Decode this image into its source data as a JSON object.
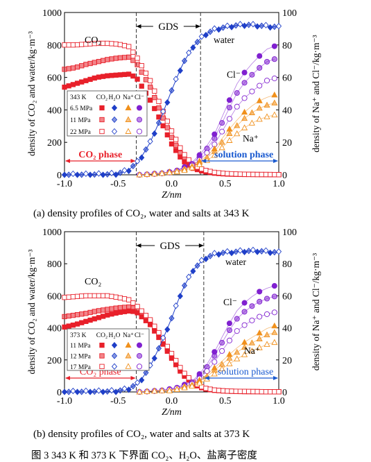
{
  "figure_caption": "图 3   343 K 和 373 K 下界面 CO₂、H₂O、盐离子密度",
  "subcaption_a": "(a)   density profiles of CO₂, water and salts at 343 K",
  "subcaption_b": "(b)   density profiles of CO₂, water and salts at 373 K",
  "colors": {
    "co2": "#e8202a",
    "water": "#1f3fc8",
    "na": "#f0901c",
    "cl": "#8020d0",
    "co2_phase": "#e8202a",
    "solution_phase": "#1a5ad0"
  },
  "chart_data": [
    {
      "type": "scatter",
      "panel": "(a)",
      "xlabel": "Z/nm",
      "ylabel_left": "density of CO₂ and water/kg·m⁻³",
      "ylabel_right": "density of Na⁺ and Cl⁻/kg·m⁻³",
      "xlim": [
        -1.0,
        1.0
      ],
      "ylim_left": [
        0,
        1000
      ],
      "ylim_right": [
        0,
        100
      ],
      "xticks": [
        "-1.0",
        "-0.5",
        "0.0",
        "0.5",
        "1.0"
      ],
      "yticks_left": [
        "0",
        "200",
        "400",
        "600",
        "800",
        "1000"
      ],
      "yticks_right": [
        "0",
        "20",
        "40",
        "60",
        "80",
        "100"
      ],
      "gds_label": "GDS",
      "gds_bounds": [
        -0.33,
        0.27
      ],
      "region_labels": {
        "left": "CO₂ phase",
        "right": "solution phase"
      },
      "annotations": {
        "co2": "CO₂",
        "water": "water",
        "cl": "Cl⁻",
        "na": "Na⁺"
      },
      "legend": {
        "header": [
          "343 K",
          "CO₂",
          "H₂O",
          "Na⁺",
          "Cl⁻"
        ],
        "rows": [
          {
            "label": "6.5 MPa",
            "style": "filled"
          },
          {
            "label": "11 MPa",
            "style": "half"
          },
          {
            "label": "22 MPa",
            "style": "open"
          }
        ]
      },
      "series": [
        {
          "name": "CO₂",
          "conditions": "6.5 MPa",
          "axis": "left",
          "x": [
            -1.0,
            -0.9,
            -0.8,
            -0.7,
            -0.6,
            -0.5,
            -0.4,
            -0.33,
            -0.2,
            -0.1,
            0.0,
            0.1,
            0.2,
            0.3,
            0.4,
            0.5,
            0.6,
            0.7,
            0.8,
            0.9,
            1.0
          ],
          "y": [
            540,
            560,
            580,
            600,
            610,
            615,
            620,
            600,
            460,
            330,
            190,
            90,
            40,
            20,
            10,
            5,
            3,
            2,
            2,
            1,
            1
          ]
        },
        {
          "name": "CO₂",
          "conditions": "11 MPa",
          "axis": "left",
          "x": [
            -1.0,
            -0.9,
            -0.8,
            -0.7,
            -0.6,
            -0.5,
            -0.4,
            -0.33,
            -0.2,
            -0.1,
            0.0,
            0.1,
            0.2,
            0.3,
            0.4,
            0.5,
            0.6,
            0.7,
            0.8,
            0.9,
            1.0
          ],
          "y": [
            650,
            660,
            680,
            695,
            710,
            720,
            725,
            690,
            540,
            380,
            230,
            110,
            50,
            25,
            12,
            6,
            4,
            3,
            2,
            2,
            1
          ]
        },
        {
          "name": "CO₂",
          "conditions": "22 MPa",
          "axis": "left",
          "x": [
            -1.0,
            -0.9,
            -0.8,
            -0.7,
            -0.6,
            -0.5,
            -0.4,
            -0.33,
            -0.2,
            -0.1,
            0.0,
            0.1,
            0.2,
            0.3,
            0.4,
            0.5,
            0.6,
            0.7,
            0.8,
            0.9,
            1.0
          ],
          "y": [
            800,
            800,
            805,
            810,
            810,
            805,
            790,
            730,
            580,
            420,
            270,
            140,
            60,
            30,
            15,
            8,
            5,
            3,
            2,
            2,
            1
          ]
        },
        {
          "name": "H₂O",
          "conditions": "all pressures",
          "axis": "left",
          "x": [
            -1.0,
            -0.8,
            -0.6,
            -0.5,
            -0.4,
            -0.3,
            -0.2,
            -0.1,
            0.0,
            0.1,
            0.2,
            0.3,
            0.4,
            0.5,
            0.6,
            0.7,
            0.8,
            0.9,
            1.0
          ],
          "y": [
            0,
            1,
            3,
            8,
            30,
            90,
            200,
            350,
            520,
            680,
            790,
            860,
            895,
            910,
            920,
            925,
            920,
            915,
            910
          ]
        },
        {
          "name": "Cl⁻",
          "conditions": "6.5 MPa",
          "axis": "right",
          "x": [
            -0.3,
            -0.1,
            0.0,
            0.1,
            0.2,
            0.3,
            0.4,
            0.5,
            0.6,
            0.7,
            0.8,
            0.9,
            1.0
          ],
          "y": [
            0,
            1,
            2,
            4,
            8,
            15,
            25,
            40,
            55,
            65,
            72,
            78,
            80
          ]
        },
        {
          "name": "Na⁺",
          "conditions": "6.5 MPa",
          "axis": "right",
          "x": [
            -0.3,
            -0.1,
            0.0,
            0.1,
            0.2,
            0.3,
            0.4,
            0.5,
            0.6,
            0.7,
            0.8,
            0.9,
            1.0
          ],
          "y": [
            0,
            1,
            2,
            3,
            6,
            10,
            16,
            25,
            33,
            40,
            45,
            48,
            50
          ]
        }
      ]
    },
    {
      "type": "scatter",
      "panel": "(b)",
      "xlabel": "Z/nm",
      "ylabel_left": "density of CO₂ and water/kg·m⁻³",
      "ylabel_right": "density of Na⁺ and Cl⁻/kg·m⁻³",
      "xlim": [
        -1.0,
        1.0
      ],
      "ylim_left": [
        0,
        1000
      ],
      "ylim_right": [
        0,
        100
      ],
      "xticks": [
        "-1.0",
        "-0.5",
        "0.0",
        "0.5",
        "1.0"
      ],
      "yticks_left": [
        "0",
        "200",
        "400",
        "600",
        "800",
        "1000"
      ],
      "yticks_right": [
        "0",
        "20",
        "40",
        "60",
        "80",
        "100"
      ],
      "gds_label": "GDS",
      "gds_bounds": [
        -0.33,
        0.3
      ],
      "region_labels": {
        "left": "CO₂ phase",
        "right": "solution phase"
      },
      "annotations": {
        "co2": "CO₂",
        "water": "water",
        "cl": "Cl⁻",
        "na": "Na⁺"
      },
      "legend": {
        "header": [
          "373 K",
          "CO₂",
          "H₂O",
          "Na⁺",
          "Cl⁻"
        ],
        "rows": [
          {
            "label": "11 MPa",
            "style": "filled"
          },
          {
            "label": "12 MPa",
            "style": "half"
          },
          {
            "label": "17 MPa",
            "style": "open"
          }
        ]
      },
      "series": [
        {
          "name": "CO₂",
          "conditions": "11 MPa",
          "axis": "left",
          "x": [
            -1.0,
            -0.9,
            -0.8,
            -0.7,
            -0.6,
            -0.5,
            -0.4,
            -0.33,
            -0.2,
            -0.1,
            0.0,
            0.1,
            0.2,
            0.3,
            0.4,
            0.5,
            0.6,
            0.7,
            0.8,
            0.9,
            1.0
          ],
          "y": [
            405,
            420,
            440,
            460,
            480,
            495,
            505,
            500,
            420,
            320,
            210,
            110,
            50,
            20,
            10,
            5,
            3,
            2,
            2,
            1,
            1
          ]
        },
        {
          "name": "CO₂",
          "conditions": "12 MPa",
          "axis": "left",
          "x": [
            -1.0,
            -0.9,
            -0.8,
            -0.7,
            -0.6,
            -0.5,
            -0.4,
            -0.33,
            -0.2,
            -0.1,
            0.0,
            0.1,
            0.2,
            0.3,
            0.4,
            0.5,
            0.6,
            0.7,
            0.8,
            0.9,
            1.0
          ],
          "y": [
            470,
            480,
            490,
            505,
            515,
            525,
            530,
            520,
            440,
            340,
            220,
            120,
            55,
            22,
            11,
            6,
            3,
            2,
            2,
            1,
            1
          ]
        },
        {
          "name": "CO₂",
          "conditions": "17 MPa",
          "axis": "left",
          "x": [
            -1.0,
            -0.9,
            -0.8,
            -0.7,
            -0.6,
            -0.5,
            -0.4,
            -0.33,
            -0.2,
            -0.1,
            0.0,
            0.1,
            0.2,
            0.3,
            0.4,
            0.5,
            0.6,
            0.7,
            0.8,
            0.9,
            1.0
          ],
          "y": [
            590,
            595,
            600,
            600,
            600,
            590,
            575,
            540,
            450,
            350,
            240,
            130,
            60,
            25,
            12,
            6,
            4,
            3,
            2,
            1,
            1
          ]
        },
        {
          "name": "H₂O",
          "conditions": "all pressures",
          "axis": "left",
          "x": [
            -1.0,
            -0.8,
            -0.6,
            -0.5,
            -0.4,
            -0.3,
            -0.2,
            -0.1,
            0.0,
            0.1,
            0.2,
            0.3,
            0.4,
            0.5,
            0.6,
            0.7,
            0.8,
            0.9,
            1.0
          ],
          "y": [
            0,
            1,
            3,
            6,
            20,
            60,
            160,
            300,
            460,
            640,
            760,
            830,
            860,
            870,
            875,
            880,
            880,
            875,
            870
          ]
        },
        {
          "name": "Cl⁻",
          "conditions": "11 MPa",
          "axis": "right",
          "x": [
            -0.3,
            -0.1,
            0.0,
            0.1,
            0.2,
            0.3,
            0.4,
            0.5,
            0.6,
            0.7,
            0.8,
            0.9,
            1.0
          ],
          "y": [
            0,
            1,
            2,
            4,
            7,
            14,
            25,
            38,
            50,
            57,
            62,
            65,
            67
          ]
        },
        {
          "name": "Na⁺",
          "conditions": "11 MPa",
          "axis": "right",
          "x": [
            -0.3,
            -0.1,
            0.0,
            0.1,
            0.2,
            0.3,
            0.4,
            0.5,
            0.6,
            0.7,
            0.8,
            0.9,
            1.0
          ],
          "y": [
            0,
            1,
            1,
            3,
            5,
            9,
            15,
            21,
            27,
            32,
            36,
            40,
            42
          ]
        }
      ]
    }
  ]
}
